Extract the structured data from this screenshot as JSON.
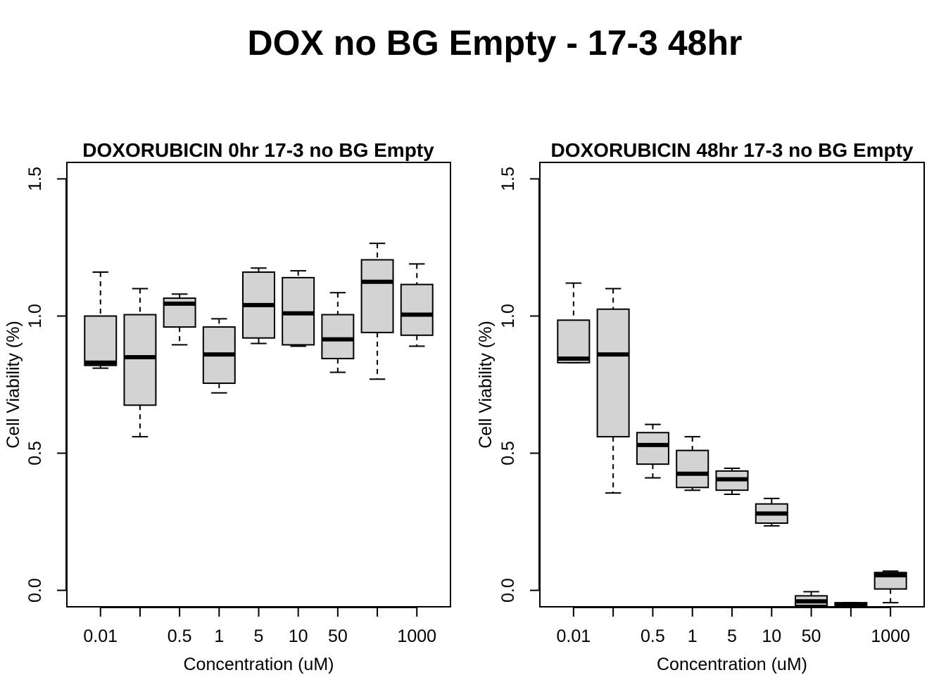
{
  "title": "DOX no BG Empty - 17-3 48hr",
  "colors": {
    "box_fill": "#d3d3d3",
    "stroke": "#000000"
  },
  "chart_data": [
    {
      "type": "box",
      "title": "DOXORUBICIN 0hr 17-3 no BG Empty",
      "xlabel": "Concentration (uM)",
      "ylabel": "Cell Viability (%)",
      "ylim": [
        -0.06,
        1.56
      ],
      "yticks": [
        "0.0",
        "0.5",
        "1.0",
        "1.5"
      ],
      "categories": [
        "0.01",
        "",
        "0.5",
        "1",
        "5",
        "10",
        "50",
        "",
        "1000"
      ],
      "boxes": [
        {
          "min": 0.81,
          "q1": 0.82,
          "median": 0.83,
          "q3": 1.0,
          "max": 1.16
        },
        {
          "min": 0.56,
          "q1": 0.675,
          "median": 0.85,
          "q3": 1.005,
          "max": 1.1
        },
        {
          "min": 0.895,
          "q1": 0.96,
          "median": 1.045,
          "q3": 1.065,
          "max": 1.08
        },
        {
          "min": 0.72,
          "q1": 0.755,
          "median": 0.86,
          "q3": 0.96,
          "max": 0.99
        },
        {
          "min": 0.9,
          "q1": 0.92,
          "median": 1.04,
          "q3": 1.16,
          "max": 1.175
        },
        {
          "min": 0.89,
          "q1": 0.895,
          "median": 1.01,
          "q3": 1.14,
          "max": 1.165
        },
        {
          "min": 0.795,
          "q1": 0.845,
          "median": 0.915,
          "q3": 1.005,
          "max": 1.085
        },
        {
          "min": 0.77,
          "q1": 0.94,
          "median": 1.125,
          "q3": 1.205,
          "max": 1.265
        },
        {
          "min": 0.89,
          "q1": 0.93,
          "median": 1.005,
          "q3": 1.115,
          "max": 1.19
        }
      ]
    },
    {
      "type": "box",
      "title": "DOXORUBICIN 48hr 17-3 no BG Empty",
      "xlabel": "Concentration (uM)",
      "ylabel": "Cell Viability (%)",
      "ylim": [
        -0.06,
        1.56
      ],
      "yticks": [
        "0.0",
        "0.5",
        "1.0",
        "1.5"
      ],
      "categories": [
        "0.01",
        "",
        "0.5",
        "1",
        "5",
        "10",
        "50",
        "",
        "1000"
      ],
      "boxes": [
        {
          "min": 0.83,
          "q1": 0.83,
          "median": 0.845,
          "q3": 0.985,
          "max": 1.12
        },
        {
          "min": 0.355,
          "q1": 0.56,
          "median": 0.86,
          "q3": 1.025,
          "max": 1.1
        },
        {
          "min": 0.41,
          "q1": 0.46,
          "median": 0.53,
          "q3": 0.575,
          "max": 0.605
        },
        {
          "min": 0.365,
          "q1": 0.375,
          "median": 0.425,
          "q3": 0.51,
          "max": 0.56
        },
        {
          "min": 0.35,
          "q1": 0.365,
          "median": 0.405,
          "q3": 0.435,
          "max": 0.445
        },
        {
          "min": 0.235,
          "q1": 0.245,
          "median": 0.28,
          "q3": 0.315,
          "max": 0.335
        },
        {
          "min": -0.06,
          "q1": -0.055,
          "median": -0.04,
          "q3": -0.02,
          "max": -0.005
        },
        {
          "min": -0.06,
          "q1": -0.06,
          "median": -0.055,
          "q3": -0.045,
          "max": -0.045
        },
        {
          "min": -0.045,
          "q1": 0.005,
          "median": 0.055,
          "q3": 0.065,
          "max": 0.07
        }
      ]
    }
  ]
}
